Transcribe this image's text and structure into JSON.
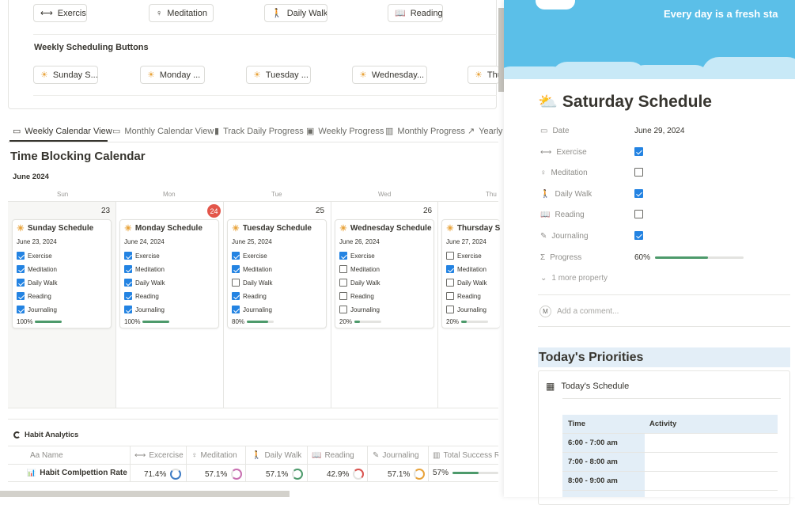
{
  "habit_buttons": [
    {
      "icon": "dumbbell-icon",
      "glyph": "⟷",
      "label": "Exercise"
    },
    {
      "icon": "meditation-icon",
      "glyph": "♀",
      "label": "Meditation"
    },
    {
      "icon": "walking-icon",
      "glyph": "🚶",
      "label": "Daily Walk"
    },
    {
      "icon": "book-icon",
      "glyph": "📖",
      "label": "Reading"
    }
  ],
  "weekly_section": {
    "title": "Weekly Scheduling Buttons",
    "buttons": [
      "Sunday S...",
      "Monday ...",
      "Tuesday ...",
      "Wednesday...",
      "Thu"
    ]
  },
  "tabs": [
    {
      "label": "Weekly Calendar View",
      "icon": "calendar-icon"
    },
    {
      "label": "Monthly Calendar View",
      "icon": "calendar-icon"
    },
    {
      "label": "Track Daily Progress",
      "icon": "bar-chart-icon"
    },
    {
      "label": "Weekly Progress",
      "icon": "inbox-icon"
    },
    {
      "label": "Monthly Progress",
      "icon": "chart-icon"
    },
    {
      "label": "Yearly",
      "icon": "trend-icon"
    }
  ],
  "calendar": {
    "title": "Time Blocking Calendar",
    "month": "June 2024",
    "days": [
      "Sun",
      "Mon",
      "Tue",
      "Wed",
      "Thu"
    ],
    "numbers": [
      "23",
      "24",
      "25",
      "26"
    ],
    "today_badge": "24",
    "cards": [
      {
        "title": "Sunday Schedule",
        "date": "June 23, 2024",
        "checks": [
          true,
          true,
          true,
          true,
          true
        ],
        "progress": "100%",
        "fill": 1.0
      },
      {
        "title": "Monday Schedule",
        "date": "June 24, 2024",
        "checks": [
          true,
          true,
          true,
          true,
          true
        ],
        "progress": "100%",
        "fill": 1.0
      },
      {
        "title": "Tuesday Schedule",
        "date": "June 25, 2024",
        "checks": [
          true,
          true,
          false,
          true,
          true
        ],
        "progress": "80%",
        "fill": 0.8
      },
      {
        "title": "Wednesday Schedule",
        "date": "June 26, 2024",
        "checks": [
          true,
          false,
          false,
          false,
          false
        ],
        "progress": "20%",
        "fill": 0.2
      },
      {
        "title": "Thursday Sch",
        "date": "June 27, 2024",
        "checks": [
          false,
          true,
          false,
          false,
          false
        ],
        "progress": "20%",
        "fill": 0.2
      }
    ],
    "habits": [
      "Exercise",
      "Meditation",
      "Daily Walk",
      "Reading",
      "Journaling"
    ]
  },
  "analytics": {
    "title": "Habit Analytics",
    "columns": [
      "Aa Name",
      "Excercise",
      "Meditation",
      "Daily Walk",
      "Reading",
      "Journaling",
      "Total Success Ra"
    ],
    "row_name": "Habit Comlpettion Rate",
    "values": [
      "71.4%",
      "57.1%",
      "57.1%",
      "42.9%",
      "57.1%",
      "57%"
    ],
    "ring_colors": [
      "#3f7cc4",
      "#c86fb0",
      "#4d9a6b",
      "#d9534f",
      "#e8a33a"
    ]
  },
  "panel": {
    "banner_text": "Every day is a fresh sta",
    "title": "Saturday Schedule",
    "props": [
      {
        "label": "Date",
        "icon": "calendar-icon",
        "value": "June 29, 2024"
      },
      {
        "label": "Exercise",
        "icon": "dumbbell-icon",
        "checked": true
      },
      {
        "label": "Meditation",
        "icon": "meditation-icon",
        "checked": false
      },
      {
        "label": "Daily Walk",
        "icon": "walking-icon",
        "checked": true
      },
      {
        "label": "Reading",
        "icon": "book-icon",
        "checked": false
      },
      {
        "label": "Journaling",
        "icon": "edit-icon",
        "checked": true
      },
      {
        "label": "Progress",
        "icon": "sigma-icon",
        "value": "60%",
        "fill": 0.6
      }
    ],
    "more": "1 more property",
    "comment_avatar": "M",
    "comment_placeholder": "Add a comment...",
    "priorities_title": "Today's Priorities",
    "schedule_title": "Today's Schedule",
    "schedule_cols": [
      "Time",
      "Activity"
    ],
    "schedule_rows": [
      "6:00 - 7:00 am",
      "7:00 - 8:00 am",
      "8:00 - 9:00 am"
    ]
  },
  "colors": {
    "accent": "#2383e2",
    "sky": "#5bbfe8",
    "progress": "#4d9a6b",
    "badge": "#e3564a"
  }
}
